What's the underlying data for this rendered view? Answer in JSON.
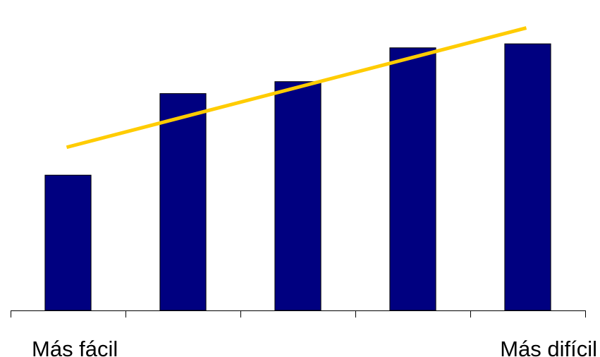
{
  "chart_data": {
    "type": "bar",
    "categories": [
      "",
      "",
      "",
      "",
      ""
    ],
    "values": [
      3.4,
      5.45,
      5.75,
      6.6,
      6.7
    ],
    "ylim": [
      0,
      7.5
    ],
    "trendline": {
      "type": "linear",
      "start": 4.1,
      "end": 7.1
    },
    "xtick_labels": {
      "first": "Más fácil",
      "last": "Más difícil"
    },
    "grid": false,
    "legend": "none",
    "colors": {
      "bar": "#000080",
      "trendline": "#FFCC00",
      "axis": "#000000"
    }
  }
}
